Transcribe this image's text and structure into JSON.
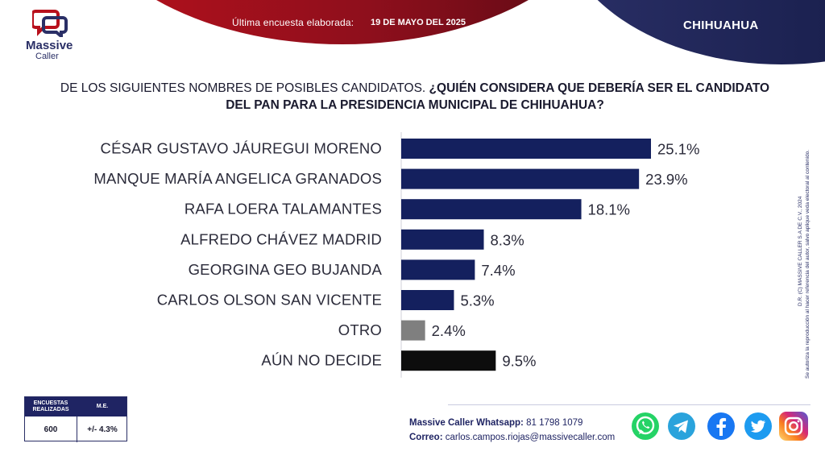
{
  "header": {
    "survey_label": "Última encuesta elaborada:",
    "survey_date": "19 DE MAYO DEL 2025",
    "state": "CHIHUAHUA"
  },
  "logo": {
    "line1": "Massive",
    "line2": "Caller"
  },
  "question": {
    "intro": "DE LOS SIGUIENTES NOMBRES DE POSIBLES CANDIDATOS.",
    "bold": "¿QUIÉN CONSIDERA QUE DEBERÍA SER EL CANDIDATO DEL PAN PARA LA PRESIDENCIA MUNICIPAL DE CHIHUAHUA?"
  },
  "chart_data": {
    "type": "bar",
    "orientation": "horizontal",
    "categories": [
      "CÉSAR GUSTAVO JÁUREGUI MORENO",
      "MANQUE MARÍA ANGELICA GRANADOS",
      "RAFA LOERA TALAMANTES",
      "ALFREDO CHÁVEZ MADRID",
      "GEORGINA GEO BUJANDA",
      "CARLOS OLSON SAN VICENTE",
      "OTRO",
      "AÚN NO DECIDE"
    ],
    "values": [
      25.1,
      23.9,
      18.1,
      8.3,
      7.4,
      5.3,
      2.4,
      9.5
    ],
    "value_labels": [
      "25.1%",
      "23.9%",
      "18.1%",
      "8.3%",
      "7.4%",
      "5.3%",
      "2.4%",
      "9.5%"
    ],
    "colors": [
      "#14205e",
      "#14205e",
      "#14205e",
      "#14205e",
      "#14205e",
      "#14205e",
      "#7f7f7f",
      "#0d0d0d"
    ],
    "xlim": [
      0,
      26
    ],
    "grid": false,
    "legend": "none"
  },
  "side_note": {
    "line1": "D.R. (C) MASSIVE CALLER S.A DE C.V., 2024",
    "line2": "Se autoriza la reproducción al hacer referencia del autor, salvo aplique veda electoral al contenido."
  },
  "info_box": {
    "col1_header": "ENCUESTAS REALIZADAS",
    "col2_header": "M.E.",
    "col1_value": "600",
    "col2_value": "+/- 4.3%"
  },
  "contact": {
    "whatsapp_label": "Massive Caller Whatsapp:",
    "whatsapp_value": "81 1798 1079",
    "email_label": "Correo:",
    "email_value": "carlos.campos.riojas@massivecaller.com"
  },
  "social_icons": [
    "whatsapp-icon",
    "telegram-icon",
    "facebook-icon",
    "twitter-icon",
    "instagram-icon"
  ],
  "colors": {
    "red": "#b8101c",
    "navy": "#1f2463",
    "bar_main": "#14205e",
    "bar_other": "#7f7f7f",
    "bar_undecided": "#0d0d0d"
  }
}
